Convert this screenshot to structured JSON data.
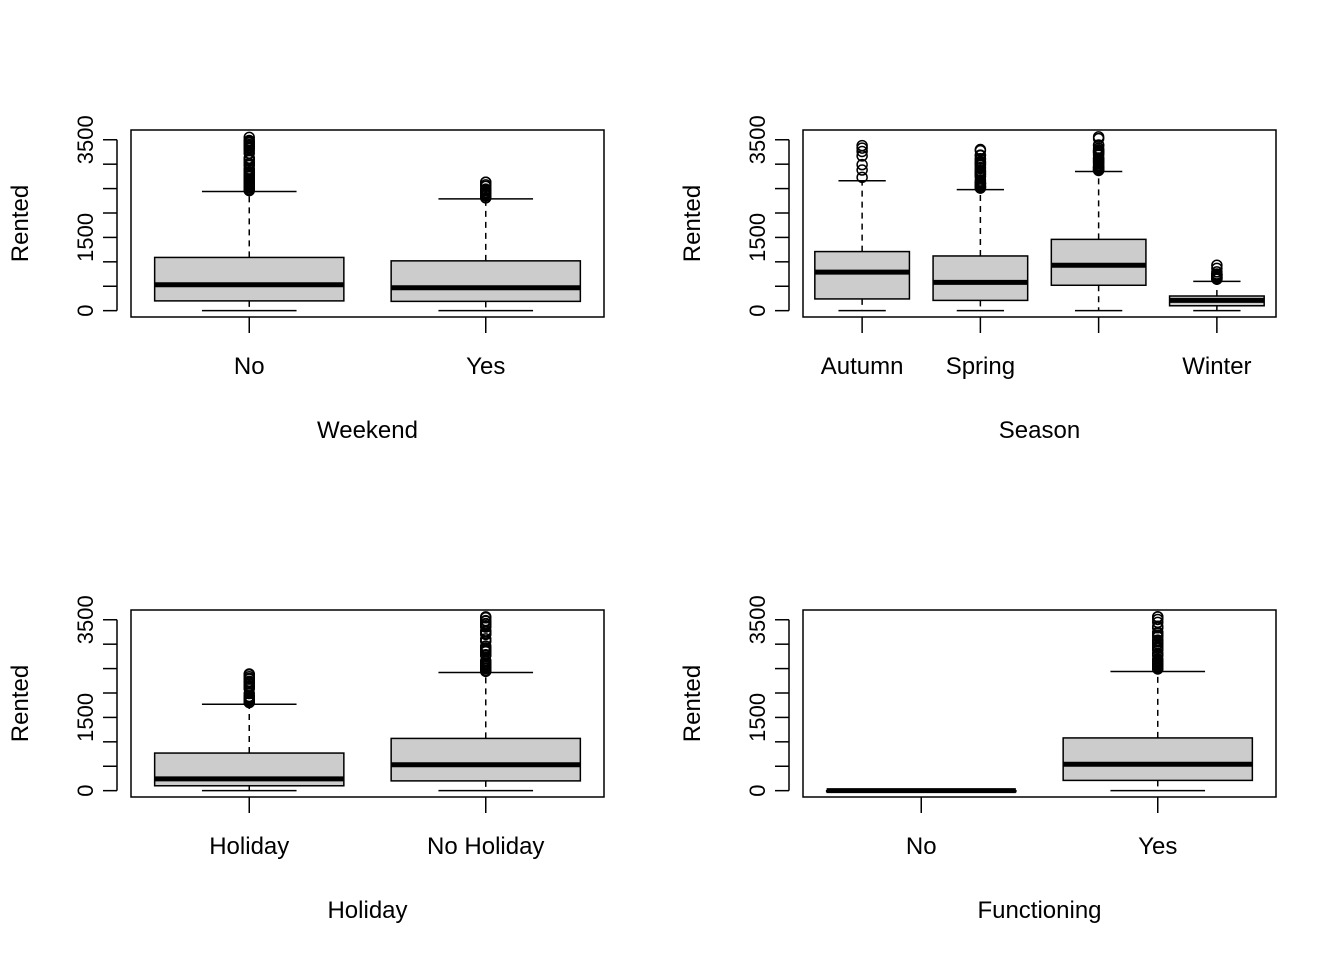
{
  "chart_data": [
    {
      "type": "box",
      "xlabel": "Weekend",
      "ylabel": "Rented",
      "ylim": [
        -130,
        3700
      ],
      "yticks": [
        0,
        500,
        1000,
        1500,
        2000,
        2500,
        3000,
        3500
      ],
      "ytick_labels": [
        "0",
        "",
        "",
        "1500",
        "",
        "",
        "",
        "3500"
      ],
      "categories": [
        "No",
        "Yes"
      ],
      "boxes": [
        {
          "label": "No",
          "whisker_low": 0,
          "q1": 200,
          "median": 530,
          "q3": 1090,
          "whisker_high": 2440,
          "outliers_from": 2460,
          "outliers_to": 3550
        },
        {
          "label": "Yes",
          "whisker_low": 0,
          "q1": 190,
          "median": 470,
          "q3": 1020,
          "whisker_high": 2290,
          "outliers_from": 2310,
          "outliers_to": 2630
        }
      ]
    },
    {
      "type": "box",
      "xlabel": "Season",
      "ylabel": "Rented",
      "ylim": [
        -130,
        3700
      ],
      "yticks": [
        0,
        500,
        1000,
        1500,
        2000,
        2500,
        3000,
        3500
      ],
      "ytick_labels": [
        "0",
        "",
        "",
        "1500",
        "",
        "",
        "",
        "3500"
      ],
      "categories": [
        "Autumn",
        "Spring",
        "",
        "Winter"
      ],
      "boxes": [
        {
          "label": "Autumn",
          "whisker_low": 0,
          "q1": 240,
          "median": 790,
          "q3": 1210,
          "whisker_high": 2660,
          "outliers": [
            2730,
            2880,
            2990,
            3170,
            3260,
            3330,
            3380
          ]
        },
        {
          "label": "Spring",
          "whisker_low": 0,
          "q1": 210,
          "median": 580,
          "q3": 1120,
          "whisker_high": 2480,
          "outliers_from": 2500,
          "outliers_to": 3300
        },
        {
          "label": "",
          "whisker_low": 0,
          "q1": 520,
          "median": 930,
          "q3": 1460,
          "whisker_high": 2850,
          "outliers_from": 2870,
          "outliers_to": 3560
        },
        {
          "label": "Winter",
          "whisker_low": 0,
          "q1": 100,
          "median": 210,
          "q3": 300,
          "whisker_high": 600,
          "outliers_from": 630,
          "outliers_to": 930
        }
      ]
    },
    {
      "type": "box",
      "xlabel": "Holiday",
      "ylabel": "Rented",
      "ylim": [
        -130,
        3700
      ],
      "yticks": [
        0,
        500,
        1000,
        1500,
        2000,
        2500,
        3000,
        3500
      ],
      "ytick_labels": [
        "0",
        "",
        "",
        "1500",
        "",
        "",
        "",
        "3500"
      ],
      "categories": [
        "Holiday",
        "No Holiday"
      ],
      "boxes": [
        {
          "label": "Holiday",
          "whisker_low": 0,
          "q1": 100,
          "median": 240,
          "q3": 770,
          "whisker_high": 1770,
          "outliers_from": 1800,
          "outliers_to": 2390
        },
        {
          "label": "No Holiday",
          "whisker_low": 0,
          "q1": 200,
          "median": 530,
          "q3": 1070,
          "whisker_high": 2420,
          "outliers_from": 2440,
          "outliers_to": 3560
        }
      ]
    },
    {
      "type": "box",
      "xlabel": "Functioning",
      "ylabel": "Rented",
      "ylim": [
        -130,
        3700
      ],
      "yticks": [
        0,
        500,
        1000,
        1500,
        2000,
        2500,
        3000,
        3500
      ],
      "ytick_labels": [
        "0",
        "",
        "",
        "1500",
        "",
        "",
        "",
        "3500"
      ],
      "categories": [
        "No",
        "Yes"
      ],
      "boxes": [
        {
          "label": "No",
          "whisker_low": 0,
          "q1": 0,
          "median": 0,
          "q3": 0,
          "whisker_high": 0,
          "outliers": []
        },
        {
          "label": "Yes",
          "whisker_low": 0,
          "q1": 210,
          "median": 540,
          "q3": 1080,
          "whisker_high": 2440,
          "outliers_from": 2460,
          "outliers_to": 3560
        }
      ]
    }
  ],
  "colors": {
    "box_fill": "#cccccc",
    "stroke": "#000000",
    "background": "#ffffff"
  }
}
